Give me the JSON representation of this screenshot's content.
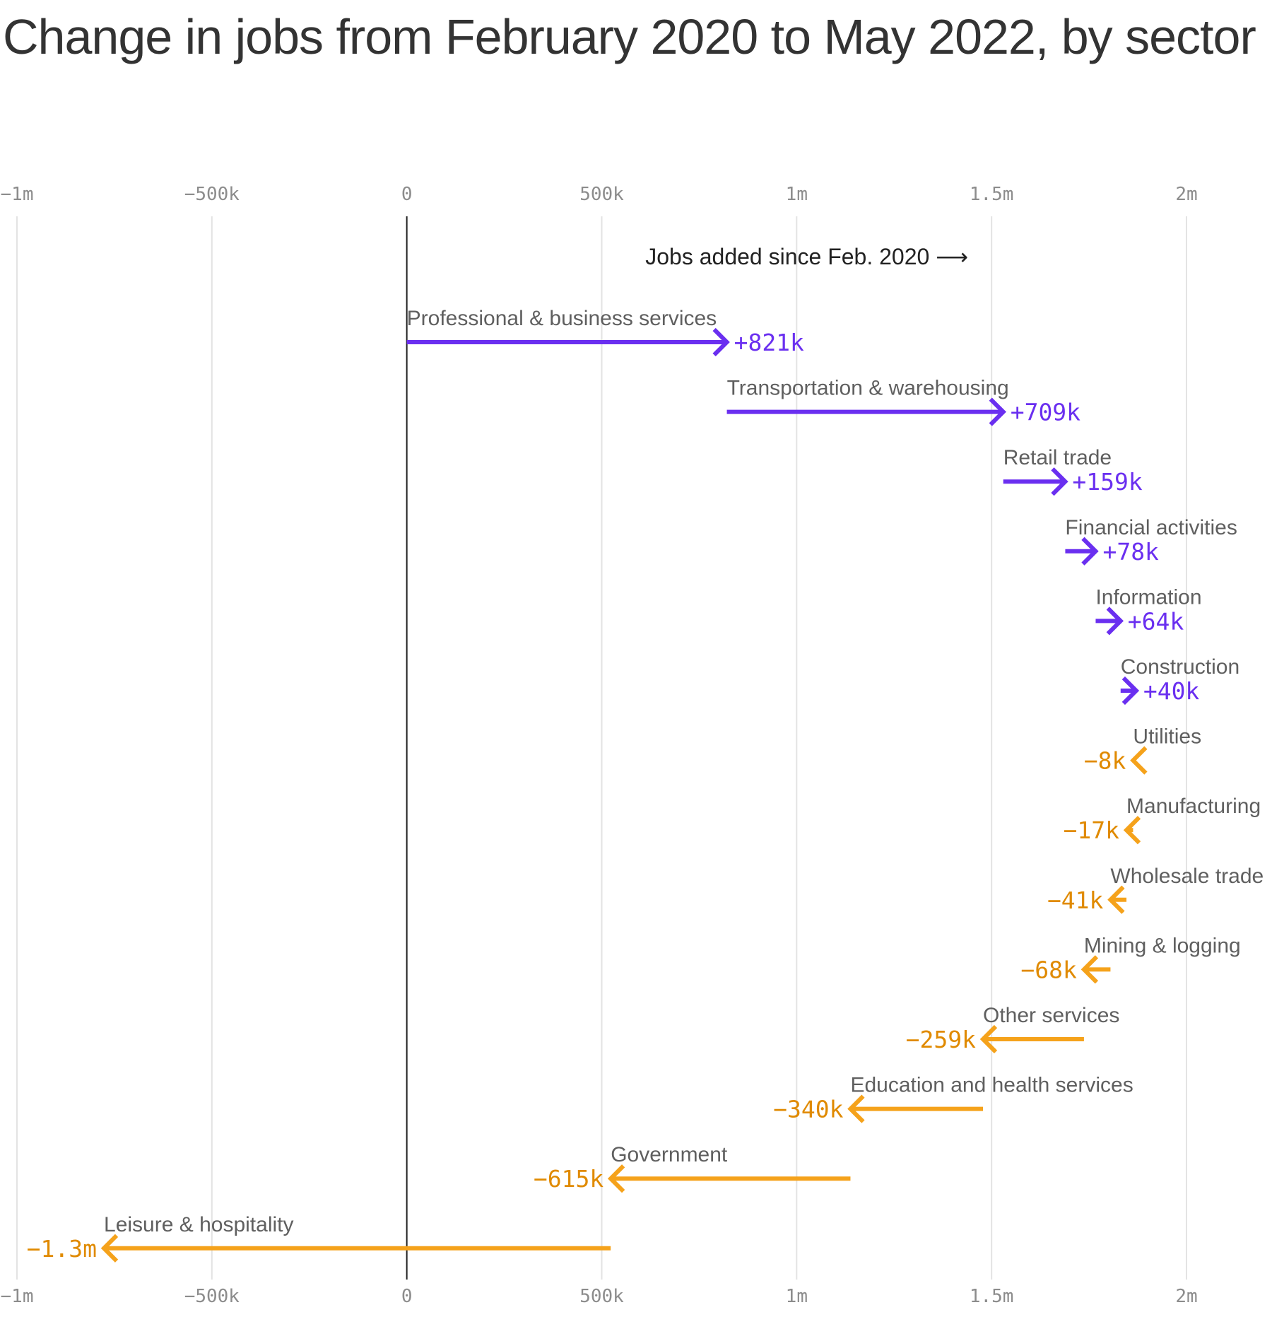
{
  "chart_data": {
    "type": "waterfall-arrows",
    "title": "Change in jobs from February 2020 to May 2022, by sector",
    "annotation": "Jobs added since Feb. 2020 ⟶",
    "xlim": [
      -1000000,
      2000000
    ],
    "ticks": [
      {
        "value": -1000000,
        "label": "−1m"
      },
      {
        "value": -500000,
        "label": "−500k"
      },
      {
        "value": 0,
        "label": "0"
      },
      {
        "value": 500000,
        "label": "500k"
      },
      {
        "value": 1000000,
        "label": "1m"
      },
      {
        "value": 1500000,
        "label": "1.5m"
      },
      {
        "value": 2000000,
        "label": "2m"
      }
    ],
    "colors": {
      "positive": "#6a2ff0",
      "negative": "#f5a21b",
      "negative_text": "#e08a00",
      "grid": "#e3e3e3",
      "zero_line": "#222222"
    },
    "sectors": [
      {
        "name": "Professional & business services",
        "change": 821000,
        "label": "+821k"
      },
      {
        "name": "Transportation & warehousing",
        "change": 709000,
        "label": "+709k"
      },
      {
        "name": "Retail trade",
        "change": 159000,
        "label": "+159k"
      },
      {
        "name": "Financial activities",
        "change": 78000,
        "label": "+78k"
      },
      {
        "name": "Information",
        "change": 64000,
        "label": "+64k"
      },
      {
        "name": "Construction",
        "change": 40000,
        "label": "+40k"
      },
      {
        "name": "Utilities",
        "change": -8000,
        "label": "−8k"
      },
      {
        "name": "Manufacturing",
        "change": -17000,
        "label": "−17k"
      },
      {
        "name": "Wholesale trade",
        "change": -41000,
        "label": "−41k"
      },
      {
        "name": "Mining & logging",
        "change": -68000,
        "label": "−68k"
      },
      {
        "name": "Other services",
        "change": -259000,
        "label": "−259k"
      },
      {
        "name": "Education and health services",
        "change": -340000,
        "label": "−340k"
      },
      {
        "name": "Government",
        "change": -615000,
        "label": "−615k"
      },
      {
        "name": "Leisure & hospitality",
        "change": -1300000,
        "label": "−1.3m"
      }
    ]
  }
}
